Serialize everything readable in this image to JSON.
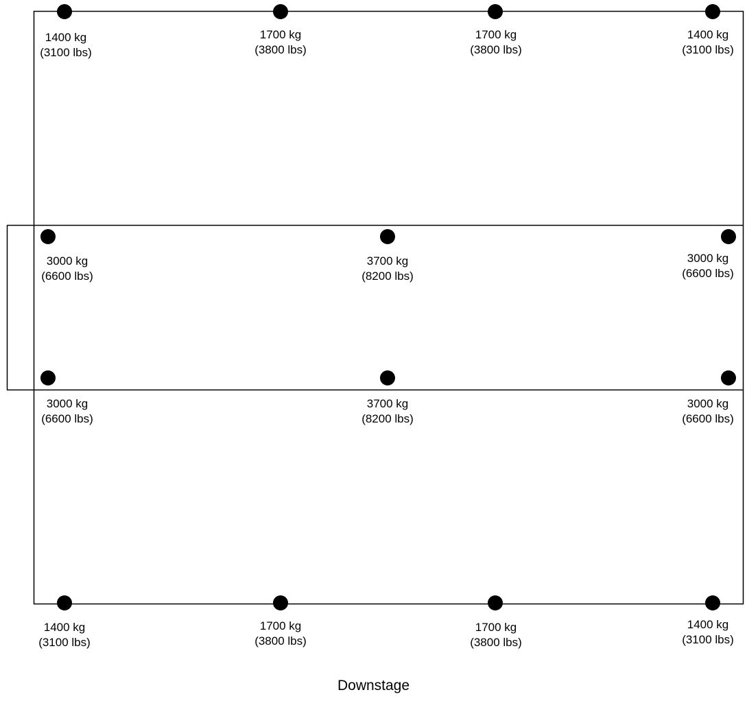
{
  "caption": "Downstage",
  "colors": {
    "line": "#000000",
    "point": "#000000",
    "background": "#ffffff"
  },
  "rows": {
    "upstage": [
      {
        "kg": "1400 kg",
        "lbs": "(3100 lbs)"
      },
      {
        "kg": "1700 kg",
        "lbs": "(3800 lbs)"
      },
      {
        "kg": "1700 kg",
        "lbs": "(3800 lbs)"
      },
      {
        "kg": "1400 kg",
        "lbs": "(3100 lbs)"
      }
    ],
    "mid_upper": [
      {
        "kg": "3000 kg",
        "lbs": "(6600 lbs)"
      },
      {
        "kg": "3700 kg",
        "lbs": "(8200 lbs)"
      },
      {
        "kg": "3000 kg",
        "lbs": "(6600 lbs)"
      }
    ],
    "mid_lower": [
      {
        "kg": "3000 kg",
        "lbs": "(6600 lbs)"
      },
      {
        "kg": "3700 kg",
        "lbs": "(8200 lbs)"
      },
      {
        "kg": "3000 kg",
        "lbs": "(6600 lbs)"
      }
    ],
    "downstage": [
      {
        "kg": "1400 kg",
        "lbs": "(3100 lbs)"
      },
      {
        "kg": "1700 kg",
        "lbs": "(3800 lbs)"
      },
      {
        "kg": "1700 kg",
        "lbs": "(3800 lbs)"
      },
      {
        "kg": "1400 kg",
        "lbs": "(3100 lbs)"
      }
    ]
  }
}
